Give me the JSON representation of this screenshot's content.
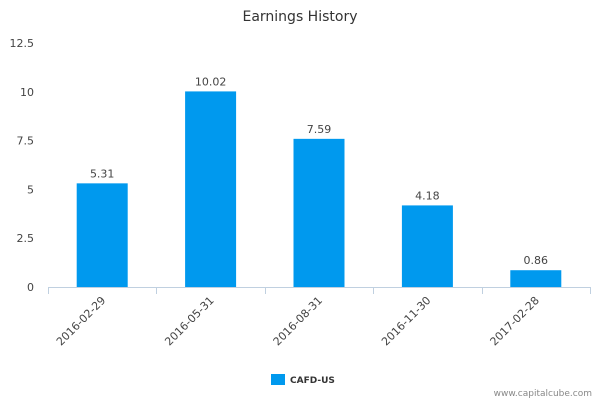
{
  "chart_data": {
    "type": "bar",
    "title": "Earnings History",
    "xlabel": "",
    "ylabel": "",
    "categories": [
      "2016-02-29",
      "2016-05-31",
      "2016-08-31",
      "2016-11-30",
      "2017-02-28"
    ],
    "series": [
      {
        "name": "CAFD-US",
        "values": [
          5.31,
          10.02,
          7.59,
          4.18,
          0.86
        ],
        "value_labels": [
          "5.31",
          "10.02",
          "7.59",
          "4.18",
          "0.86"
        ],
        "color": "#0099ee"
      }
    ],
    "ylim": [
      0,
      12.5
    ],
    "yticks": [
      0,
      2.5,
      5,
      7.5,
      10,
      12.5
    ],
    "ytick_labels": [
      "0",
      "2.5",
      "5",
      "7.5",
      "10",
      "12.5"
    ],
    "grid": false,
    "legend_position": "bottom-center"
  },
  "credit": "www.capitalcube.com",
  "colors": {
    "bar": "#0099ee",
    "axis": "#c0d0e0"
  }
}
